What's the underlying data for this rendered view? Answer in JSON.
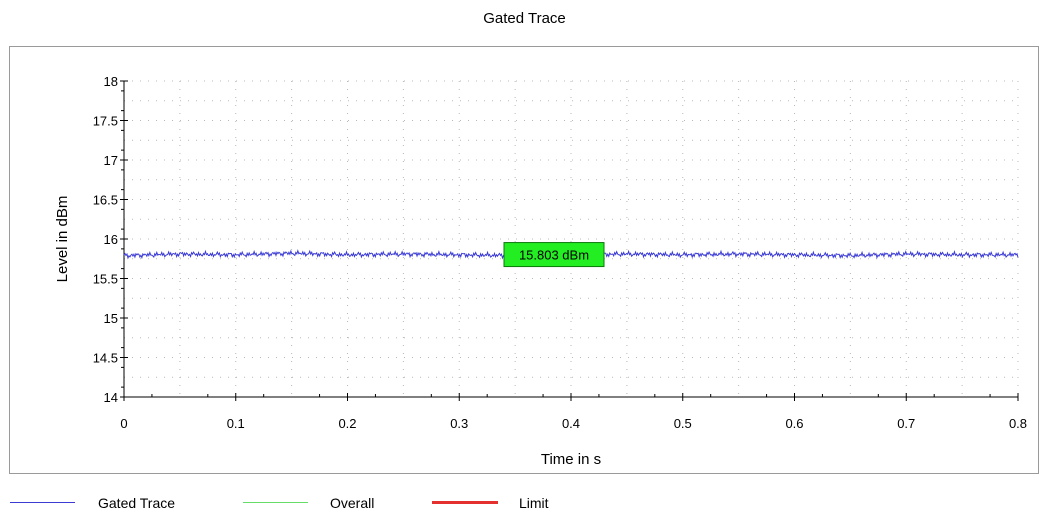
{
  "chart_data": {
    "type": "line",
    "title": "Gated Trace",
    "xlabel": "Time in s",
    "ylabel": "Level in dBm",
    "xlim": [
      0,
      0.8
    ],
    "ylim": [
      14,
      18
    ],
    "x_ticks": [
      "0",
      "0.1",
      "0.2",
      "0.3",
      "0.4",
      "0.5",
      "0.6",
      "0.7",
      "0.8"
    ],
    "y_ticks": [
      "14",
      "14.5",
      "15",
      "15.5",
      "16",
      "16.5",
      "17",
      "17.5",
      "18"
    ],
    "grid": true,
    "legend_position": "bottom",
    "series": [
      {
        "name": "Gated Trace",
        "color": "#3b3bd4",
        "x": [
          0,
          0.05,
          0.1,
          0.15,
          0.2,
          0.25,
          0.3,
          0.35,
          0.4,
          0.45,
          0.5,
          0.55,
          0.6,
          0.65,
          0.7,
          0.75,
          0.8
        ],
        "y": [
          15.79,
          15.81,
          15.8,
          15.82,
          15.8,
          15.81,
          15.8,
          15.79,
          15.8,
          15.81,
          15.8,
          15.81,
          15.8,
          15.79,
          15.81,
          15.8,
          15.8
        ]
      },
      {
        "name": "Overall",
        "color": "#66dd66"
      },
      {
        "name": "Limit",
        "color": "#e53030"
      }
    ],
    "annotation": {
      "text": "15.803 dBm",
      "x": 0.4,
      "y": 15.803,
      "background": "#22ee22"
    }
  }
}
